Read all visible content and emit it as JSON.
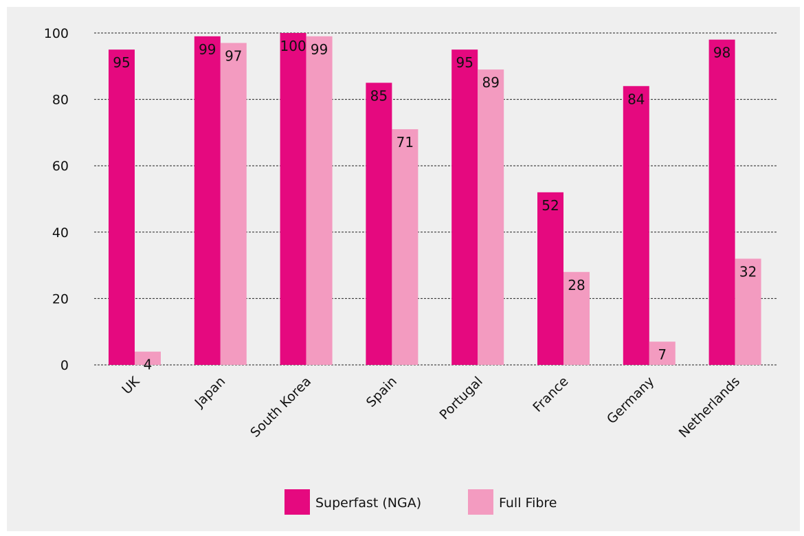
{
  "chart_data": {
    "type": "bar",
    "title": "",
    "xlabel": "",
    "ylabel": "",
    "ylim": [
      0,
      100
    ],
    "yticks": [
      0,
      20,
      40,
      60,
      80,
      100
    ],
    "grid": "horizontal dashed",
    "legend_position": "bottom",
    "categories": [
      "UK",
      "Japan",
      "South Korea",
      "Spain",
      "Portugal",
      "France",
      "Germany",
      "Netherlands"
    ],
    "series": [
      {
        "name": "Superfast (NGA)",
        "color": "#e5097f",
        "values": [
          95,
          99,
          100,
          85,
          95,
          52,
          84,
          98
        ]
      },
      {
        "name": "Full Fibre",
        "color": "#f39bc0",
        "values": [
          4,
          97,
          99,
          71,
          89,
          28,
          7,
          32
        ]
      }
    ]
  }
}
